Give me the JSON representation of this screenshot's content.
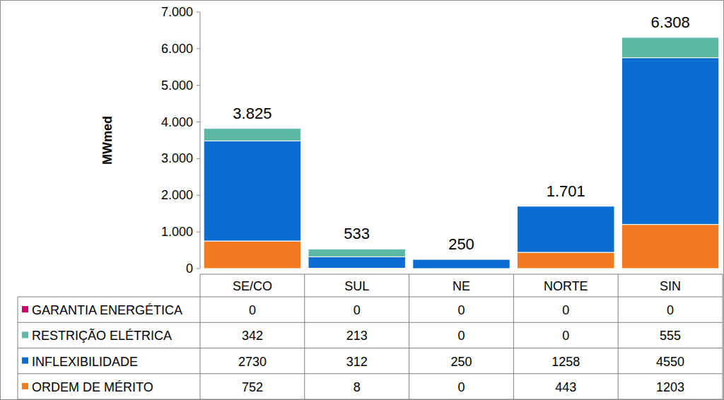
{
  "chart_data": {
    "type": "bar",
    "stacked": true,
    "grid": false,
    "y_label": "MWmed",
    "categories": [
      "SE/CO",
      "SUL",
      "NE",
      "NORTE",
      "SIN"
    ],
    "series": [
      {
        "name": "ORDEM DE MÉRITO",
        "color": "#f47a1f",
        "values": [
          752,
          8,
          0,
          443,
          1203
        ]
      },
      {
        "name": "INFLEXIBILIDADE",
        "color": "#0a6dd1",
        "values": [
          2730,
          312,
          250,
          1258,
          4550
        ]
      },
      {
        "name": "RESTRIÇÃO ELÉTRICA",
        "color": "#5db8a5",
        "values": [
          342,
          213,
          0,
          0,
          555
        ]
      },
      {
        "name": "GARANTIA ENERGÉTICA",
        "color": "#cc0066",
        "values": [
          0,
          0,
          0,
          0,
          0
        ]
      }
    ],
    "totals": [
      3825,
      533,
      250,
      1701,
      6308
    ],
    "total_labels": [
      "3.825",
      "533",
      "250",
      "1.701",
      "6.308"
    ],
    "ylim": [
      0,
      7000
    ],
    "yticks": [
      0,
      {
        "value": 1000,
        "label": "1.000"
      },
      {
        "value": 2000,
        "label": "2.000"
      },
      {
        "value": 3000,
        "label": "3.000"
      },
      {
        "value": 4000,
        "label": "4.000"
      },
      {
        "value": 5000,
        "label": "5.000"
      },
      {
        "value": 6000,
        "label": "6.000"
      },
      {
        "value": 7000,
        "label": "7.000"
      }
    ]
  }
}
